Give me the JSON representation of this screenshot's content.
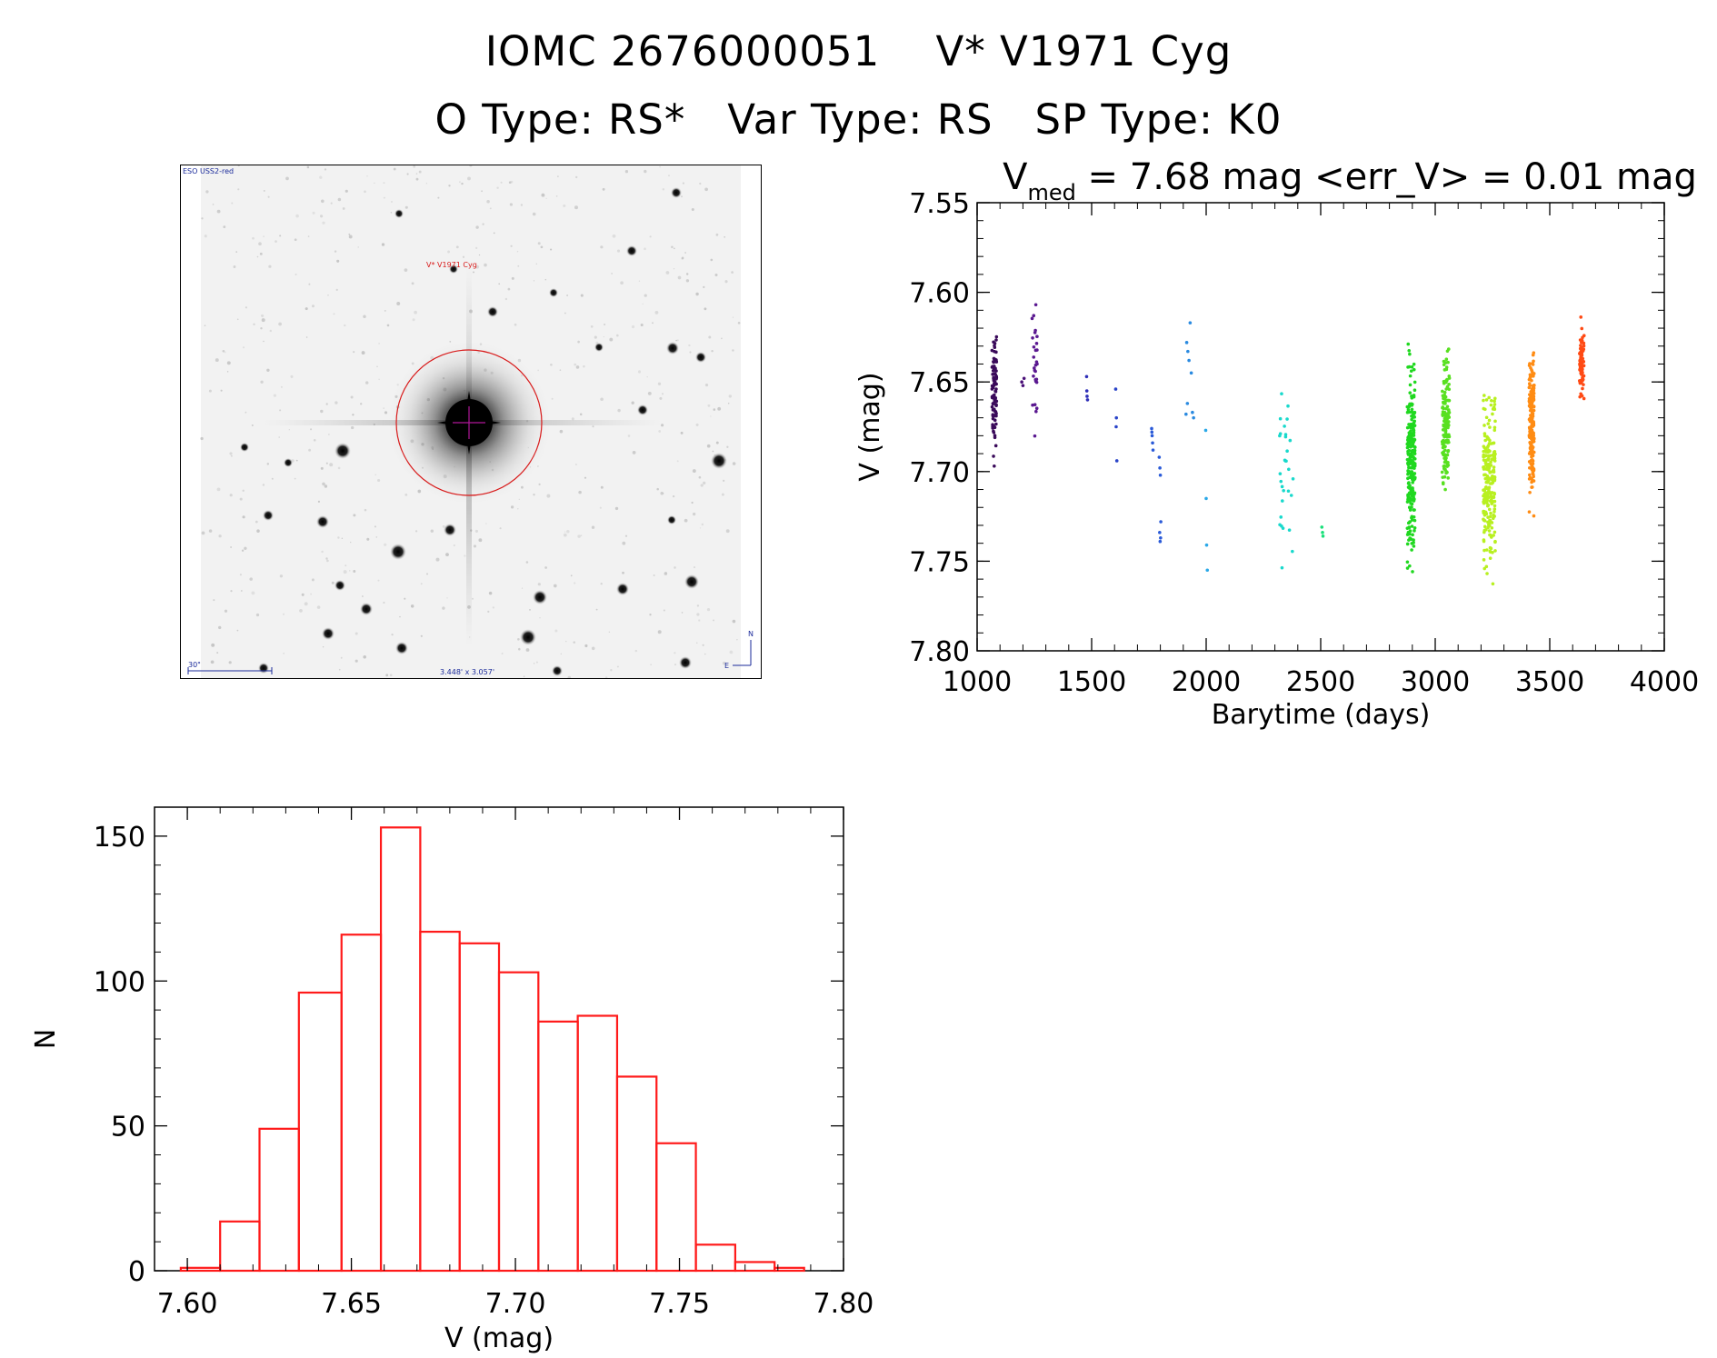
{
  "header": {
    "line1": "IOMC 2676000051    V* V1971 Cyg",
    "line2": "O Type: RS*   Var Type: RS   SP Type: K0"
  },
  "finder_chart": {
    "survey_label": "ESO USS2-red",
    "target_label": "V* V1971 Cyg",
    "scale_label": "30\"",
    "fov_label": "3.448' x 3.057'",
    "north_label": "N",
    "east_label": "E",
    "colors": {
      "circle": "#d81a1a",
      "crosshair": "#b0179a",
      "labels": "#1a2a9a"
    }
  },
  "chart_data": [
    {
      "type": "scatter",
      "title_prefix": "V",
      "title_sub": "med",
      "title_rest": " = 7.68 mag <err_V> = 0.01 mag",
      "xlabel": "Barytime (days)",
      "ylabel": "V (mag)",
      "xlim": [
        1000,
        4000
      ],
      "ylim": [
        7.8,
        7.55
      ],
      "y_inverted": true,
      "x_ticks": [
        1000,
        1500,
        2000,
        2500,
        3000,
        3500,
        4000
      ],
      "y_ticks": [
        "7.55",
        "7.60",
        "7.65",
        "7.70",
        "7.75",
        "7.80"
      ],
      "point_color_scale": "rainbow by time",
      "groups": [
        {
          "x_range": [
            1065,
            1085
          ],
          "y_range": [
            7.612,
            7.702
          ],
          "color": "#3a0a5a",
          "n": 90
        },
        {
          "x": [
            1195,
            1200,
            1205
          ],
          "y": [
            7.65,
            7.652,
            7.648
          ],
          "color": "#4a1078"
        },
        {
          "x_range": [
            1240,
            1262
          ],
          "y_range": [
            7.598,
            7.688
          ],
          "color": "#5a1890",
          "n": 28
        },
        {
          "x": [
            1478,
            1480,
            1482,
            1479
          ],
          "y": [
            7.647,
            7.658,
            7.66,
            7.655
          ],
          "color": "#3030b8"
        },
        {
          "x": [
            1605,
            1607,
            1610,
            1608
          ],
          "y": [
            7.654,
            7.675,
            7.694,
            7.67
          ],
          "color": "#2a44c8"
        },
        {
          "x": [
            1762,
            1764,
            1766,
            1768,
            1763
          ],
          "y": [
            7.676,
            7.68,
            7.684,
            7.688,
            7.678
          ],
          "color": "#2a5ad8"
        },
        {
          "x": [
            1795,
            1798,
            1800,
            1802,
            1797,
            1801,
            1799
          ],
          "y": [
            7.692,
            7.698,
            7.702,
            7.728,
            7.734,
            7.737,
            7.739
          ],
          "color": "#2a5ad8"
        },
        {
          "x": [
            1915,
            1920,
            1925,
            1918,
            1912,
            1930,
            1935,
            1940,
            1945
          ],
          "y": [
            7.628,
            7.633,
            7.638,
            7.662,
            7.668,
            7.617,
            7.645,
            7.667,
            7.67
          ],
          "color": "#2a8ae0"
        },
        {
          "x": [
            1998,
            2000,
            2002,
            2005
          ],
          "y": [
            7.677,
            7.715,
            7.741,
            7.755
          ],
          "color": "#2aa8e8"
        },
        {
          "x_range": [
            2320,
            2380
          ],
          "y_range": [
            7.634,
            7.78
          ],
          "color": "#19d9cc",
          "n": 30
        },
        {
          "x": [
            2505,
            2508,
            2510
          ],
          "y": [
            7.731,
            7.734,
            7.736
          ],
          "color": "#1ae07a"
        },
        {
          "x_range": [
            2878,
            2912
          ],
          "y_range": [
            7.617,
            7.763
          ],
          "color": "#20d820",
          "n": 260
        },
        {
          "x_range": [
            3030,
            3062
          ],
          "y_range": [
            7.622,
            7.729
          ],
          "color": "#58e020",
          "n": 150
        },
        {
          "x_range": [
            3210,
            3262
          ],
          "y_range": [
            7.641,
            7.767
          ],
          "color": "#b8f020",
          "n": 230
        },
        {
          "x_range": [
            3410,
            3432
          ],
          "y_range": [
            7.619,
            7.733
          ],
          "color": "#ff8c14",
          "n": 200
        },
        {
          "x_range": [
            3630,
            3650
          ],
          "y_range": [
            7.606,
            7.671
          ],
          "color": "#ff4a14",
          "n": 75
        }
      ]
    },
    {
      "type": "bar",
      "histogram": true,
      "xlabel": "V (mag)",
      "ylabel": "N",
      "xlim": [
        7.59,
        7.8
      ],
      "ylim": [
        0,
        160
      ],
      "x_ticks": [
        "7.60",
        "7.65",
        "7.70",
        "7.75",
        "7.80"
      ],
      "y_ticks": [
        "0",
        "50",
        "100",
        "150"
      ],
      "bin_edges": [
        7.598,
        7.61,
        7.622,
        7.634,
        7.647,
        7.659,
        7.671,
        7.683,
        7.695,
        7.707,
        7.719,
        7.731,
        7.743,
        7.755,
        7.767,
        7.779,
        7.788
      ],
      "values": [
        1,
        17,
        49,
        96,
        116,
        153,
        117,
        113,
        103,
        86,
        88,
        67,
        44,
        9,
        3,
        1
      ],
      "color": "#ff1a1a"
    }
  ]
}
